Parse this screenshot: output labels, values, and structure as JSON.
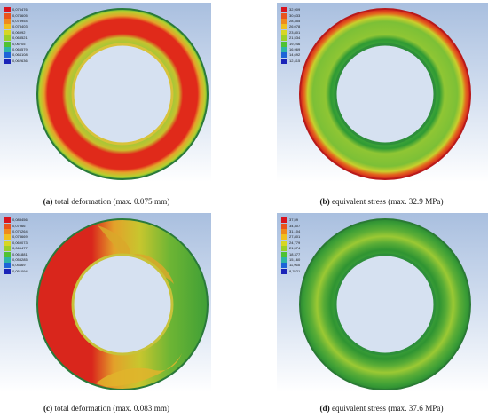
{
  "panels": [
    {
      "id": "a",
      "caption_letter": "(a)",
      "caption_text": " total deformation (max. 0.075 mm)",
      "legend_values": [
        "0,075476",
        "0,074605",
        "0,073954",
        "0,073403",
        "0,06992",
        "0,068521",
        "0,06705",
        "0,065579",
        "0,064108",
        "0,062636"
      ],
      "legend_colors": [
        "#d8141e",
        "#e9541c",
        "#ef8a1d",
        "#f0c020",
        "#d7d624",
        "#9cd028",
        "#4fc233",
        "#2eb4a6",
        "#1d64d8",
        "#1a24b8"
      ]
    },
    {
      "id": "b",
      "caption_letter": "(b)",
      "caption_text": " equivalent stress (max. 32.9 MPa)",
      "legend_values": [
        "32,909",
        "30,633",
        "28,355",
        "26,078",
        "23,801",
        "21,534",
        "19,246",
        "16,969",
        "14,692",
        "12,415"
      ],
      "legend_colors": [
        "#d8141e",
        "#e9541c",
        "#ef8a1d",
        "#f0c020",
        "#d7d624",
        "#9cd028",
        "#4fc233",
        "#2eb4a6",
        "#1d64d8",
        "#1a24b8"
      ]
    },
    {
      "id": "c",
      "caption_letter": "(c)",
      "caption_text": " total deformation (max. 0.083 mm)",
      "legend_values": [
        "0,083456",
        "0,07966",
        "0,076264",
        "0,073669",
        "0,069073",
        "0,065477",
        "0,061881",
        "0,058285",
        "0,05469",
        "0,051094"
      ],
      "legend_colors": [
        "#d8141e",
        "#e9541c",
        "#ef8a1d",
        "#f0c020",
        "#d7d624",
        "#9cd028",
        "#4fc233",
        "#2eb4a6",
        "#1d64d8",
        "#1a24b8"
      ]
    },
    {
      "id": "d",
      "caption_letter": "(d)",
      "caption_text": " equivalent stress (max. 37.6 MPa)",
      "legend_values": [
        "37,59",
        "34,307",
        "31,104",
        "27,801",
        "24,779",
        "21,574",
        "18,377",
        "15,160",
        "11,965",
        "8,7621"
      ],
      "legend_colors": [
        "#d8141e",
        "#e9541c",
        "#ef8a1d",
        "#f0c020",
        "#d7d624",
        "#9cd028",
        "#4fc233",
        "#2eb4a6",
        "#1d64d8",
        "#1a24b8"
      ]
    }
  ]
}
